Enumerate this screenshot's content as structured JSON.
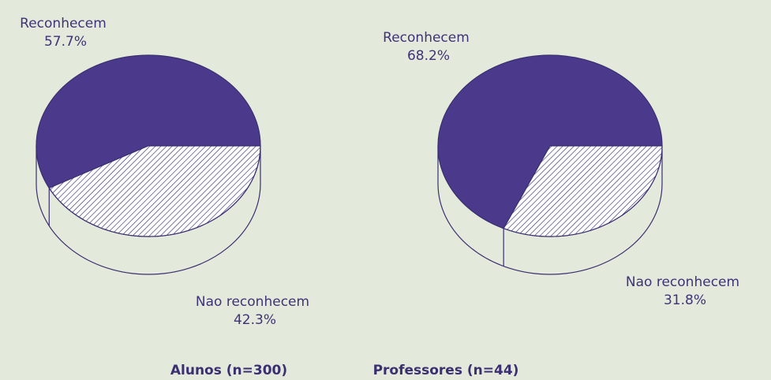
{
  "chart_data": [
    {
      "type": "pie",
      "title": "Alunos (n=300)",
      "categories": [
        "Reconhecem",
        "Nao reconhecem"
      ],
      "values": [
        57.7,
        42.3
      ],
      "value_labels": [
        "57.7%",
        "42.3%"
      ],
      "colors": [
        "#4b3a8c",
        "#ffffff"
      ],
      "hatch": [
        false,
        true
      ]
    },
    {
      "type": "pie",
      "title": "Professores (n=44)",
      "categories": [
        "Reconhecem",
        "Nao reconhecem"
      ],
      "values": [
        68.2,
        31.8
      ],
      "value_labels": [
        "68.2%",
        "31.8%"
      ],
      "colors": [
        "#4b3a8c",
        "#ffffff"
      ],
      "hatch": [
        false,
        true
      ]
    }
  ]
}
